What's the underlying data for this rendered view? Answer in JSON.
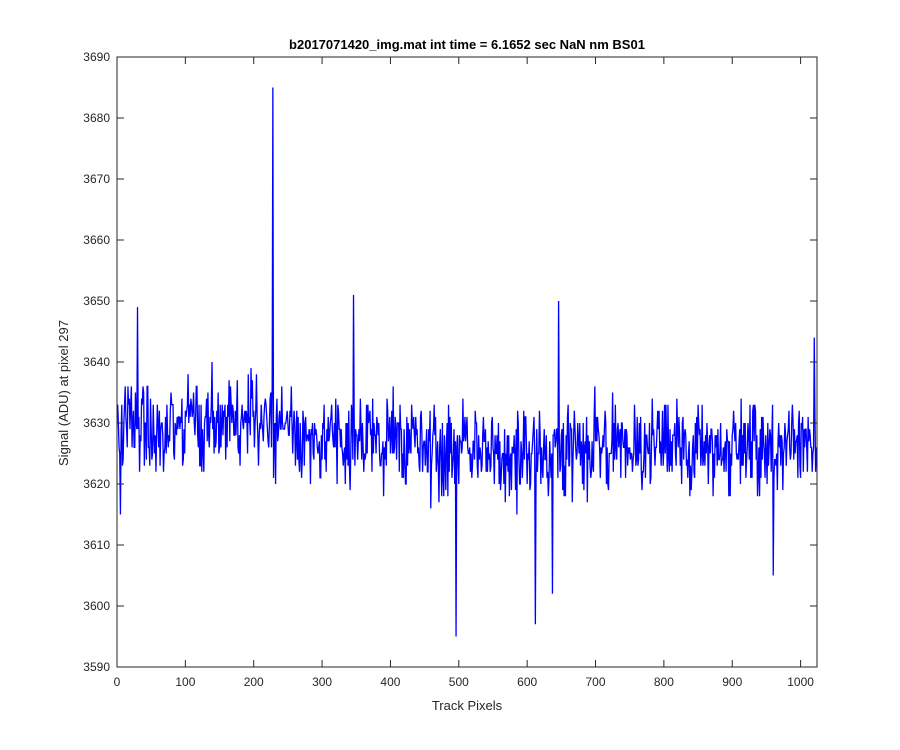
{
  "chart_data": {
    "type": "line",
    "title": "b2017071420_img.mat int time = 6.1652 sec  NaN nm BS01",
    "xlabel": "Track Pixels",
    "ylabel": "Signal (ADU) at pixel 297",
    "xlim": [
      0,
      1024
    ],
    "ylim": [
      3590,
      3690
    ],
    "xticks": [
      0,
      100,
      200,
      300,
      400,
      500,
      600,
      700,
      800,
      900,
      1000
    ],
    "yticks": [
      3590,
      3600,
      3610,
      3620,
      3630,
      3640,
      3650,
      3660,
      3670,
      3680,
      3690
    ],
    "grid": false,
    "box": true,
    "line_color": "#0000ff",
    "series": [
      {
        "x_start": 1,
        "x_step": 1,
        "spikes": [
          {
            "x": 228,
            "y": 3685
          },
          {
            "x": 496,
            "y": 3595
          },
          {
            "x": 612,
            "y": 3597
          },
          {
            "x": 637,
            "y": 3602
          },
          {
            "x": 5,
            "y": 3615
          },
          {
            "x": 30,
            "y": 3649
          },
          {
            "x": 346,
            "y": 3651
          },
          {
            "x": 646,
            "y": 3650
          },
          {
            "x": 960,
            "y": 3605
          },
          {
            "x": 1020,
            "y": 3644
          }
        ],
        "segments": [
          {
            "from": 1,
            "to": 230,
            "mean": 3629.5,
            "noise": 7.5
          },
          {
            "from": 231,
            "to": 450,
            "mean": 3628.0,
            "noise": 7.0
          },
          {
            "from": 451,
            "to": 700,
            "mean": 3625.5,
            "noise": 7.5
          },
          {
            "from": 701,
            "to": 1024,
            "mean": 3626.0,
            "noise": 7.0
          }
        ]
      }
    ]
  }
}
